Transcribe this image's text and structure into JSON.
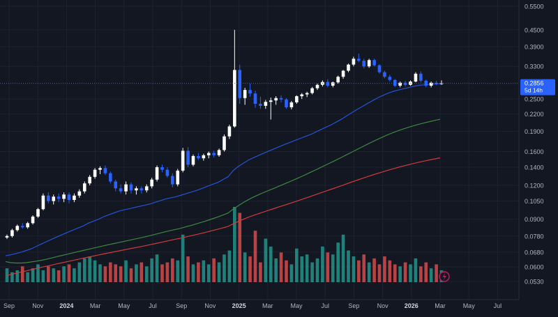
{
  "theme": {
    "background": "#131722",
    "grid": "#1e2230",
    "axis_text": "#b2b5be",
    "candle_up": "#ffffff",
    "candle_down": "#2962ff",
    "ma_fast": "#2454d6",
    "ma_mid": "#3c8a3f",
    "ma_slow": "#d43a3a",
    "vol_up": "#26a69a",
    "vol_down": "#ef5350",
    "price_label_bg": "#2962ff"
  },
  "chart_data": {
    "type": "candlestick",
    "scale": "log",
    "y_ticks": [
      "0.5500",
      "0.4500",
      "0.3900",
      "0.3300",
      "0.2500",
      "0.2200",
      "0.1900",
      "0.1600",
      "0.1400",
      "0.1200",
      "0.1050",
      "0.0900",
      "0.0780",
      "0.0680",
      "0.0600",
      "0.0530"
    ],
    "y_range": [
      0.0525,
      0.56
    ],
    "x_ticks": [
      "Sep",
      "Nov",
      "2024",
      "Mar",
      "May",
      "Jul",
      "Sep",
      "Nov",
      "2025",
      "Mar",
      "May",
      "Jul",
      "Sep",
      "Nov",
      "2026",
      "Mar",
      "May",
      "Jul"
    ],
    "bold_x_ticks": [
      "2024",
      "2025",
      "2026"
    ],
    "last_price": {
      "value": "0.2856",
      "countdown": "5d 14h"
    },
    "candles": [
      [
        0.077,
        0.079,
        0.076,
        0.078
      ],
      [
        0.078,
        0.083,
        0.077,
        0.082
      ],
      [
        0.082,
        0.086,
        0.081,
        0.085
      ],
      [
        0.085,
        0.087,
        0.083,
        0.084
      ],
      [
        0.084,
        0.088,
        0.083,
        0.087
      ],
      [
        0.087,
        0.093,
        0.086,
        0.092
      ],
      [
        0.092,
        0.099,
        0.091,
        0.098
      ],
      [
        0.098,
        0.112,
        0.097,
        0.11
      ],
      [
        0.11,
        0.113,
        0.103,
        0.105
      ],
      [
        0.105,
        0.111,
        0.102,
        0.109
      ],
      [
        0.109,
        0.112,
        0.104,
        0.107
      ],
      [
        0.107,
        0.113,
        0.104,
        0.111
      ],
      [
        0.111,
        0.113,
        0.103,
        0.106
      ],
      [
        0.106,
        0.112,
        0.104,
        0.11
      ],
      [
        0.11,
        0.116,
        0.108,
        0.114
      ],
      [
        0.114,
        0.124,
        0.112,
        0.122
      ],
      [
        0.122,
        0.131,
        0.12,
        0.129
      ],
      [
        0.129,
        0.139,
        0.127,
        0.137
      ],
      [
        0.137,
        0.141,
        0.132,
        0.139
      ],
      [
        0.139,
        0.142,
        0.131,
        0.133
      ],
      [
        0.133,
        0.135,
        0.122,
        0.124
      ],
      [
        0.124,
        0.126,
        0.114,
        0.117
      ],
      [
        0.117,
        0.121,
        0.112,
        0.114
      ],
      [
        0.114,
        0.124,
        0.111,
        0.121
      ],
      [
        0.121,
        0.123,
        0.112,
        0.115
      ],
      [
        0.115,
        0.119,
        0.111,
        0.117
      ],
      [
        0.117,
        0.119,
        0.112,
        0.115
      ],
      [
        0.115,
        0.121,
        0.113,
        0.119
      ],
      [
        0.119,
        0.128,
        0.117,
        0.126
      ],
      [
        0.126,
        0.142,
        0.124,
        0.14
      ],
      [
        0.14,
        0.143,
        0.134,
        0.137
      ],
      [
        0.137,
        0.14,
        0.128,
        0.13
      ],
      [
        0.13,
        0.133,
        0.118,
        0.121
      ],
      [
        0.121,
        0.138,
        0.119,
        0.136
      ],
      [
        0.136,
        0.165,
        0.134,
        0.161
      ],
      [
        0.161,
        0.166,
        0.14,
        0.143
      ],
      [
        0.143,
        0.156,
        0.141,
        0.154
      ],
      [
        0.154,
        0.158,
        0.149,
        0.151
      ],
      [
        0.151,
        0.157,
        0.148,
        0.155
      ],
      [
        0.155,
        0.16,
        0.151,
        0.158
      ],
      [
        0.158,
        0.161,
        0.152,
        0.155
      ],
      [
        0.155,
        0.164,
        0.153,
        0.162
      ],
      [
        0.162,
        0.185,
        0.16,
        0.182
      ],
      [
        0.182,
        0.201,
        0.178,
        0.198
      ],
      [
        0.198,
        0.45,
        0.196,
        0.32
      ],
      [
        0.32,
        0.335,
        0.24,
        0.252
      ],
      [
        0.252,
        0.275,
        0.238,
        0.27
      ],
      [
        0.27,
        0.285,
        0.255,
        0.262
      ],
      [
        0.262,
        0.268,
        0.232,
        0.24
      ],
      [
        0.24,
        0.255,
        0.23,
        0.236
      ],
      [
        0.236,
        0.248,
        0.23,
        0.244
      ],
      [
        0.244,
        0.253,
        0.21,
        0.247
      ],
      [
        0.247,
        0.256,
        0.238,
        0.252
      ],
      [
        0.252,
        0.258,
        0.243,
        0.249
      ],
      [
        0.249,
        0.252,
        0.23,
        0.233
      ],
      [
        0.233,
        0.246,
        0.229,
        0.243
      ],
      [
        0.243,
        0.258,
        0.24,
        0.256
      ],
      [
        0.256,
        0.263,
        0.25,
        0.26
      ],
      [
        0.26,
        0.266,
        0.254,
        0.263
      ],
      [
        0.263,
        0.277,
        0.26,
        0.274
      ],
      [
        0.274,
        0.285,
        0.27,
        0.282
      ],
      [
        0.282,
        0.293,
        0.278,
        0.289
      ],
      [
        0.289,
        0.296,
        0.276,
        0.28
      ],
      [
        0.28,
        0.29,
        0.276,
        0.288
      ],
      [
        0.288,
        0.305,
        0.285,
        0.302
      ],
      [
        0.302,
        0.32,
        0.297,
        0.318
      ],
      [
        0.318,
        0.338,
        0.314,
        0.335
      ],
      [
        0.335,
        0.358,
        0.33,
        0.352
      ],
      [
        0.352,
        0.368,
        0.342,
        0.346
      ],
      [
        0.346,
        0.352,
        0.325,
        0.33
      ],
      [
        0.33,
        0.352,
        0.326,
        0.348
      ],
      [
        0.348,
        0.352,
        0.33,
        0.333
      ],
      [
        0.333,
        0.336,
        0.31,
        0.314
      ],
      [
        0.314,
        0.318,
        0.298,
        0.302
      ],
      [
        0.302,
        0.307,
        0.29,
        0.294
      ],
      [
        0.294,
        0.296,
        0.277,
        0.28
      ],
      [
        0.28,
        0.29,
        0.276,
        0.287
      ],
      [
        0.287,
        0.292,
        0.278,
        0.282
      ],
      [
        0.282,
        0.293,
        0.28,
        0.29
      ],
      [
        0.29,
        0.314,
        0.288,
        0.31
      ],
      [
        0.31,
        0.316,
        0.288,
        0.292
      ],
      [
        0.292,
        0.295,
        0.276,
        0.28
      ],
      [
        0.28,
        0.29,
        0.276,
        0.287
      ],
      [
        0.287,
        0.292,
        0.281,
        0.284
      ],
      [
        0.284,
        0.293,
        0.282,
        0.2856
      ]
    ],
    "ma_fast": [
      0.066,
      0.0665,
      0.0672,
      0.068,
      0.069,
      0.07,
      0.0715,
      0.073,
      0.0745,
      0.076,
      0.0775,
      0.079,
      0.0805,
      0.082,
      0.0835,
      0.085,
      0.087,
      0.0885,
      0.09,
      0.092,
      0.0935,
      0.095,
      0.0965,
      0.0975,
      0.0985,
      0.0995,
      0.1005,
      0.1015,
      0.1025,
      0.104,
      0.1055,
      0.107,
      0.108,
      0.109,
      0.1105,
      0.112,
      0.1135,
      0.115,
      0.117,
      0.119,
      0.121,
      0.123,
      0.126,
      0.129,
      0.136,
      0.141,
      0.145,
      0.149,
      0.152,
      0.155,
      0.158,
      0.161,
      0.164,
      0.167,
      0.17,
      0.173,
      0.176,
      0.179,
      0.182,
      0.185,
      0.189,
      0.193,
      0.197,
      0.201,
      0.206,
      0.211,
      0.217,
      0.223,
      0.229,
      0.235,
      0.241,
      0.247,
      0.253,
      0.258,
      0.263,
      0.267,
      0.27,
      0.273,
      0.276,
      0.279,
      0.281,
      0.282,
      0.283,
      0.284,
      0.2845
    ],
    "ma_mid": [
      0.0628,
      0.0622,
      0.062,
      0.062,
      0.0622,
      0.0626,
      0.063,
      0.0635,
      0.0641,
      0.0648,
      0.0655,
      0.0662,
      0.0669,
      0.0676,
      0.0683,
      0.069,
      0.0697,
      0.0704,
      0.0711,
      0.0718,
      0.0725,
      0.0732,
      0.0739,
      0.0746,
      0.0753,
      0.076,
      0.0767,
      0.0775,
      0.0783,
      0.0792,
      0.0801,
      0.081,
      0.0818,
      0.0826,
      0.0835,
      0.0845,
      0.0855,
      0.0866,
      0.0878,
      0.089,
      0.0903,
      0.0917,
      0.0932,
      0.0948,
      0.098,
      0.101,
      0.1038,
      0.1064,
      0.1088,
      0.111,
      0.1131,
      0.1152,
      0.1173,
      0.1195,
      0.1217,
      0.124,
      0.1264,
      0.1289,
      0.1315,
      0.1342,
      0.137,
      0.1399,
      0.1429,
      0.146,
      0.1492,
      0.1525,
      0.1559,
      0.1594,
      0.163,
      0.1667,
      0.1704,
      0.1741,
      0.1778,
      0.1814,
      0.1849,
      0.1882,
      0.1913,
      0.1942,
      0.1969,
      0.1995,
      0.2019,
      0.2042,
      0.2064,
      0.2085,
      0.2105
    ],
    "ma_slow": [
      0.0556,
      0.0562,
      0.0568,
      0.0574,
      0.058,
      0.0586,
      0.0592,
      0.0598,
      0.0604,
      0.061,
      0.0616,
      0.0622,
      0.0628,
      0.0634,
      0.064,
      0.0646,
      0.0652,
      0.0658,
      0.0664,
      0.067,
      0.0676,
      0.0682,
      0.0688,
      0.0694,
      0.07,
      0.0706,
      0.0712,
      0.0718,
      0.0725,
      0.0732,
      0.0739,
      0.0746,
      0.0753,
      0.076,
      0.0767,
      0.0775,
      0.0783,
      0.0791,
      0.0799,
      0.0808,
      0.0817,
      0.0826,
      0.0836,
      0.0846,
      0.0865,
      0.0883,
      0.09,
      0.0916,
      0.0931,
      0.0945,
      0.0959,
      0.0973,
      0.0987,
      0.1001,
      0.1015,
      0.103,
      0.1045,
      0.1061,
      0.1077,
      0.1093,
      0.111,
      0.1127,
      0.1144,
      0.1162,
      0.118,
      0.1198,
      0.1217,
      0.1236,
      0.1255,
      0.1274,
      0.1293,
      0.1312,
      0.133,
      0.1348,
      0.1366,
      0.1383,
      0.14,
      0.1416,
      0.1432,
      0.1447,
      0.1462,
      0.1476,
      0.149,
      0.1503,
      0.1516
    ],
    "volume": [
      7,
      5,
      6,
      8,
      5,
      7,
      9,
      6,
      8,
      7,
      6,
      8,
      9,
      7,
      10,
      12,
      13,
      11,
      9,
      8,
      10,
      9,
      8,
      11,
      7,
      9,
      10,
      8,
      12,
      14,
      9,
      10,
      12,
      11,
      24,
      13,
      9,
      10,
      11,
      9,
      12,
      10,
      14,
      16,
      38,
      35,
      15,
      13,
      26,
      10,
      22,
      18,
      12,
      15,
      11,
      9,
      17,
      13,
      14,
      10,
      12,
      18,
      15,
      14,
      20,
      24,
      16,
      13,
      11,
      14,
      10,
      12,
      9,
      13,
      11,
      9,
      8,
      10,
      9,
      12,
      8,
      10,
      7,
      9,
      6
    ],
    "volume_max": 38
  }
}
